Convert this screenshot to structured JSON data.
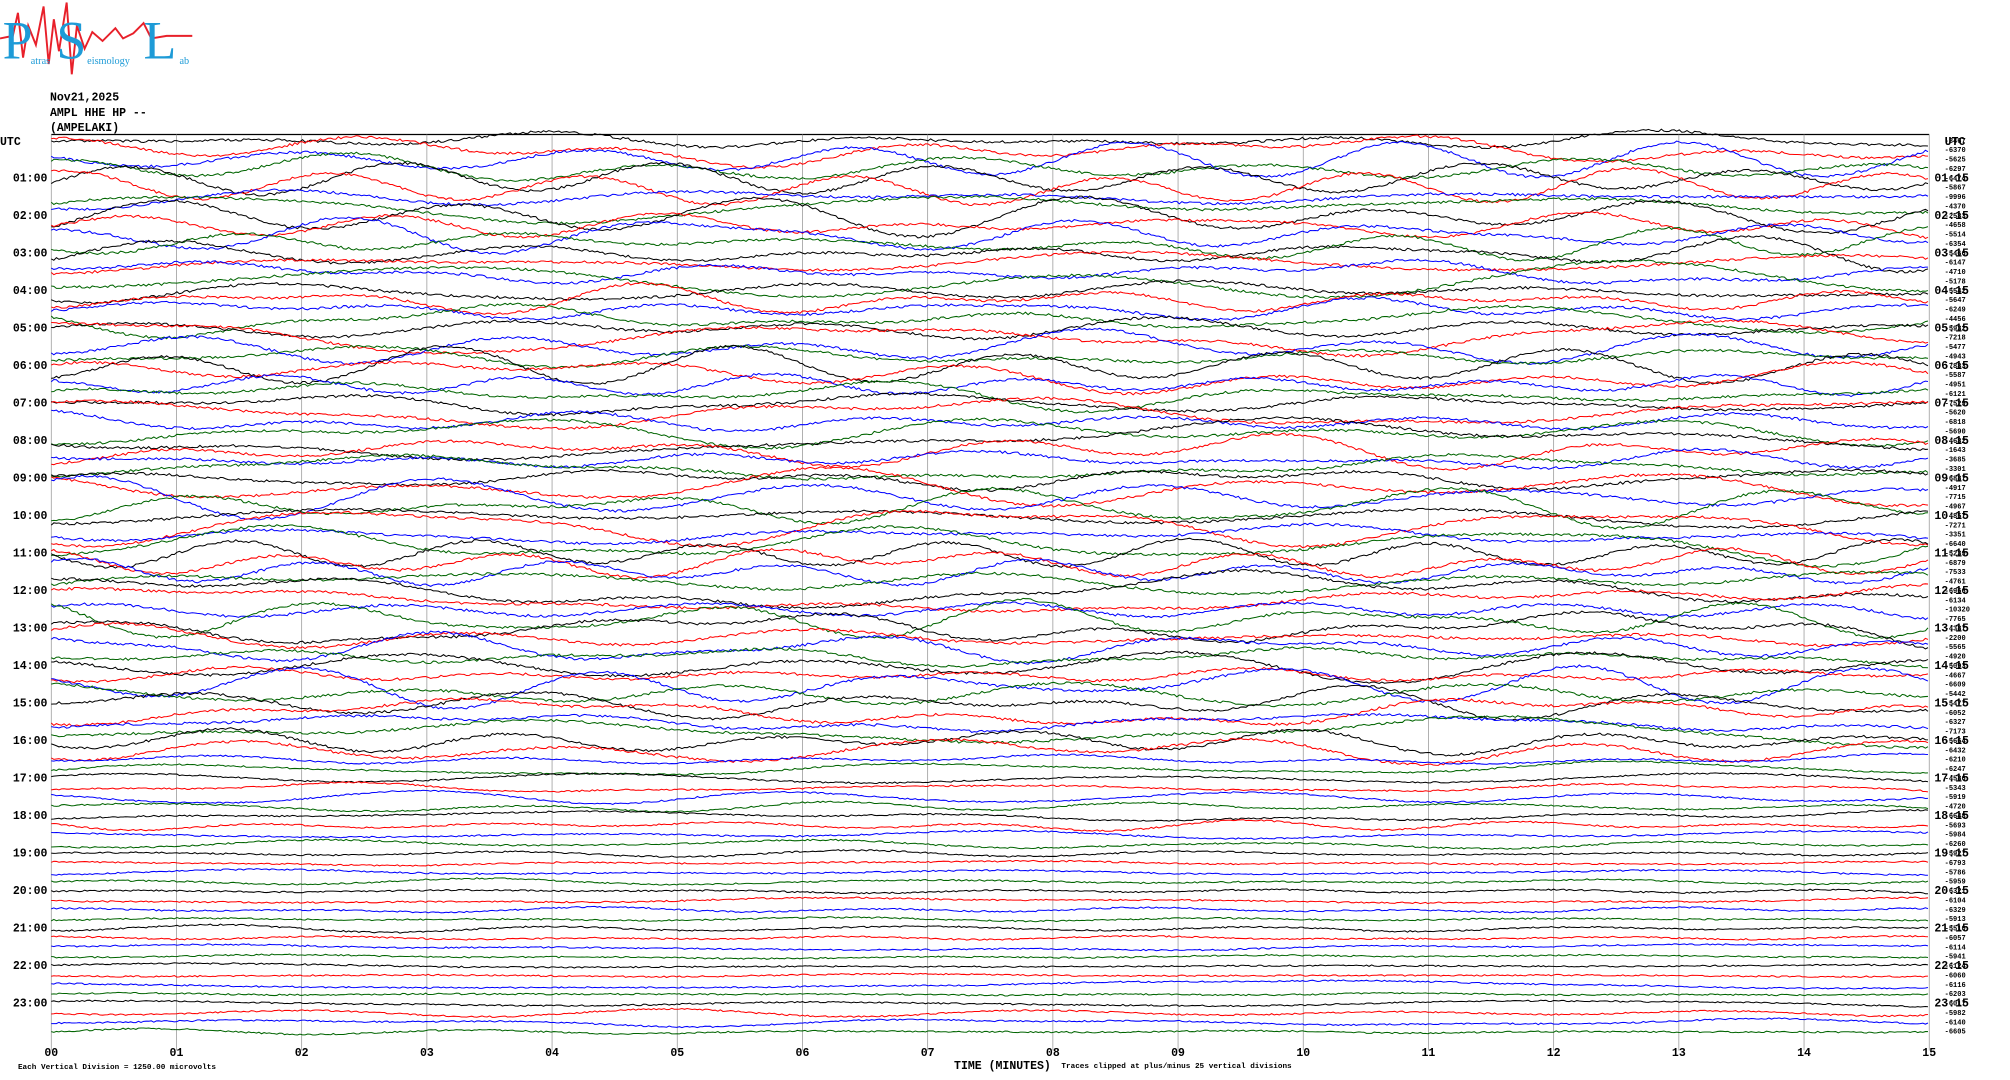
{
  "chart_data": {
    "type": "helicorder",
    "logo": {
      "letters": [
        "P",
        "S",
        "L"
      ],
      "words": [
        "atras",
        "eismology",
        "ab"
      ]
    },
    "date": "Nov21,2025",
    "channel": "AMPL HHE HP --",
    "site": "(AMPELAKI)",
    "left_axis_title": "UTC",
    "right_axis_title": "UTC",
    "left_row_labels": [
      "01:00",
      "02:00",
      "03:00",
      "04:00",
      "05:00",
      "06:00",
      "07:00",
      "08:00",
      "09:00",
      "10:00",
      "11:00",
      "12:00",
      "13:00",
      "14:00",
      "15:00",
      "16:00",
      "17:00",
      "18:00",
      "19:00",
      "20:00",
      "21:00",
      "22:00",
      "23:00"
    ],
    "right_row_labels": [
      "01:15",
      "02:15",
      "03:15",
      "04:15",
      "05:15",
      "06:15",
      "07:15",
      "08:15",
      "09:15",
      "10:15",
      "11:15",
      "12:15",
      "13:15",
      "14:15",
      "15:15",
      "16:15",
      "17:15",
      "18:15",
      "19:15",
      "20:15",
      "21:15",
      "22:15",
      "23:15"
    ],
    "trace_offsets": [
      -8467,
      -6370,
      -5625,
      -6297,
      -6474,
      -5867,
      -9996,
      -4370,
      -2583,
      -4658,
      -5514,
      -6354,
      -5466,
      -6147,
      -4710,
      -5178,
      -5542,
      -5647,
      -6249,
      -4456,
      -5932,
      -7218,
      -5477,
      -4943,
      -7883,
      -5587,
      -4951,
      -6121,
      -7529,
      -5620,
      -6818,
      -5690,
      -4682,
      -1643,
      -3685,
      -3301,
      -6887,
      -4917,
      -7715,
      -4967,
      -4857,
      -7271,
      -3351,
      -6640,
      -5239,
      -6879,
      -7533,
      -4761,
      -6966,
      -6134,
      -10320,
      -7765,
      -4387,
      -2200,
      -5565,
      -4920,
      -5093,
      -4667,
      -6609,
      -5442,
      -5477,
      -6052,
      -6327,
      -7173,
      -5664,
      -6432,
      -6210,
      -6247,
      -4586,
      -5343,
      -5919,
      -4720,
      -6648,
      -5693,
      -5984,
      -6260,
      -5927,
      -6793,
      -5786,
      -5959,
      -6321,
      -6104,
      -6329,
      -5913,
      -5510,
      -6057,
      -6114,
      -5941,
      -6124,
      -6060,
      -6116,
      -6203,
      -6017,
      -5982,
      -6140,
      -6605
    ],
    "trace_colors": [
      "#000000",
      "#ff0000",
      "#0000ff",
      "#006400"
    ],
    "xlim": [
      0,
      15
    ],
    "xticks": [
      {
        "value": 0,
        "label": "00"
      },
      {
        "value": 1,
        "label": "01"
      },
      {
        "value": 2,
        "label": "02"
      },
      {
        "value": 3,
        "label": "03"
      },
      {
        "value": 4,
        "label": "04"
      },
      {
        "value": 5,
        "label": "05"
      },
      {
        "value": 6,
        "label": "06"
      },
      {
        "value": 7,
        "label": "07"
      },
      {
        "value": 8,
        "label": "08"
      },
      {
        "value": 9,
        "label": "09"
      },
      {
        "value": 10,
        "label": "10"
      },
      {
        "value": 11,
        "label": "11"
      },
      {
        "value": 12,
        "label": "12"
      },
      {
        "value": 13,
        "label": "13"
      },
      {
        "value": 14,
        "label": "14"
      },
      {
        "value": 15,
        "label": "15"
      }
    ],
    "xlabel": "TIME (MINUTES)",
    "scale_note": "Each Vertical Division = 1250.00 microvolts",
    "clip_note": "Traces clipped at plus/minus 25 vertical divisions",
    "grid": true
  }
}
